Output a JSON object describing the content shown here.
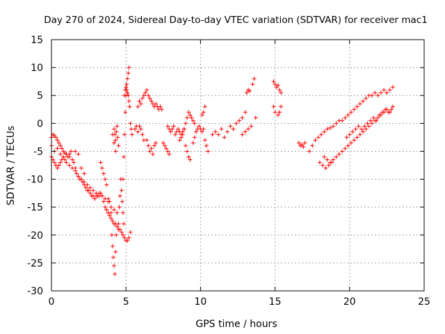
{
  "chart_data": {
    "type": "scatter",
    "title": "Day 270 of 2024, Sidereal Day-to-day VTEC variation (SDTVAR) for receiver mac1",
    "xlabel": "GPS time / hours",
    "ylabel": "SDTVAR / TECUs",
    "xlim": [
      0,
      25
    ],
    "ylim": [
      -30,
      15
    ],
    "xticks": [
      0,
      5,
      10,
      15,
      20,
      25
    ],
    "yticks": [
      -30,
      -25,
      -20,
      -15,
      -10,
      -5,
      0,
      5,
      10,
      15
    ],
    "grid": true,
    "marker": "+",
    "colors": {
      "series": "#ff0000",
      "axis": "#000000",
      "grid": "#a0a0a0"
    },
    "series": [
      {
        "name": "SDTVAR",
        "x": [
          0.0,
          0.1,
          0.2,
          0.3,
          0.4,
          0.5,
          0.6,
          0.7,
          0.8,
          0.9,
          1.0,
          1.1,
          1.2,
          1.3,
          1.4,
          1.5,
          1.6,
          1.7,
          1.8,
          1.9,
          2.0,
          2.1,
          2.2,
          2.3,
          2.4,
          2.5,
          2.6,
          2.7,
          2.8,
          2.9,
          3.0,
          3.1,
          3.2,
          3.3,
          3.4,
          3.5,
          3.6,
          3.7,
          3.8,
          3.9,
          4.0,
          4.1,
          4.2,
          4.3,
          4.4,
          4.5,
          4.6,
          4.7,
          4.8,
          4.9,
          5.0,
          5.1,
          5.2,
          5.3,
          0.0,
          0.1,
          0.2,
          0.3,
          0.4,
          0.5,
          0.6,
          0.7,
          0.8,
          0.9,
          1.0,
          1.2,
          1.4,
          1.6,
          1.8,
          2.0,
          2.2,
          2.4,
          2.6,
          2.8,
          3.0,
          3.2,
          3.4,
          3.6,
          3.8,
          4.0,
          4.2,
          4.4,
          0.0,
          0.2,
          0.4,
          0.6,
          0.8,
          1.0,
          1.2,
          1.4,
          1.6,
          1.8,
          2.0,
          2.2,
          3.3,
          3.4,
          3.5,
          3.6,
          3.7,
          3.8,
          3.9,
          4.0,
          4.05,
          4.1,
          4.15,
          4.2,
          4.25,
          4.3,
          4.35,
          4.5,
          4.55,
          4.6,
          4.65,
          4.7,
          4.75,
          4.8,
          4.85,
          4.2,
          4.25,
          4.3,
          4.35,
          4.4,
          4.45,
          4.5,
          4.1,
          4.2,
          4.3,
          4.8,
          4.85,
          4.9,
          4.95,
          5.0,
          5.05,
          5.1,
          5.15,
          5.2,
          4.9,
          4.95,
          5.0,
          5.05,
          5.1,
          5.15,
          5.2,
          5.25,
          5.3,
          5.35,
          5.4,
          5.6,
          5.7,
          5.8,
          5.9,
          6.0,
          6.1,
          6.2,
          5.8,
          5.9,
          6.0,
          6.1,
          6.2,
          6.3,
          6.4,
          6.5,
          6.6,
          6.7,
          6.8,
          6.9,
          7.0,
          7.1,
          7.2,
          7.3,
          7.4,
          6.4,
          6.5,
          6.6,
          6.7,
          6.8,
          6.9,
          7.0,
          7.5,
          7.6,
          7.7,
          7.8,
          7.9,
          7.8,
          7.9,
          8.0,
          8.1,
          8.2,
          8.3,
          8.4,
          8.5,
          8.6,
          8.7,
          8.8,
          8.9,
          8.6,
          8.7,
          8.8,
          8.9,
          9.0,
          9.1,
          9.2,
          9.3,
          9.4,
          9.5,
          9.6,
          9.0,
          9.1,
          9.2,
          9.3,
          9.5,
          9.6,
          9.7,
          9.8,
          9.9,
          10.0,
          10.1,
          10.2,
          10.1,
          10.2,
          10.3,
          10.3,
          10.4,
          10.5,
          10.8,
          11.0,
          11.2,
          11.4,
          11.6,
          11.8,
          12.0,
          12.2,
          12.4,
          12.6,
          12.8,
          13.0,
          13.1,
          13.2,
          13.3,
          12.8,
          13.0,
          13.2,
          13.4,
          13.5,
          13.6,
          13.7,
          14.9,
          15.0,
          15.1,
          15.2,
          15.3,
          15.4,
          15.2,
          15.3,
          15.4,
          14.9,
          15.0,
          16.6,
          16.7,
          16.8,
          16.9,
          17.0,
          17.3,
          17.5,
          17.7,
          17.9,
          18.1,
          18.3,
          18.5,
          18.7,
          18.9,
          19.1,
          19.3,
          19.5,
          19.7,
          19.9,
          20.1,
          20.3,
          20.5,
          20.7,
          20.9,
          21.1,
          21.3,
          21.5,
          21.7,
          21.9,
          22.1,
          22.3,
          22.5,
          22.7,
          22.9,
          18.3,
          18.5,
          18.7,
          18.9,
          19.1,
          19.3,
          19.5,
          19.7,
          19.9,
          20.1,
          20.3,
          20.5,
          20.7,
          20.9,
          21.1,
          21.3,
          21.5,
          21.7,
          21.9,
          22.1,
          22.3,
          22.5,
          22.7,
          22.9,
          18.0,
          18.2,
          18.4,
          18.6,
          18.8,
          19.8,
          20.0,
          20.2,
          20.4,
          20.6,
          20.8,
          21.0,
          21.2,
          21.4,
          21.6,
          21.8,
          22.0,
          22.2,
          22.4,
          22.6,
          22.8
        ],
        "y": [
          -2.5,
          -2.0,
          -2.2,
          -2.5,
          -3.0,
          -3.5,
          -4.0,
          -4.5,
          -5.0,
          -5.3,
          -5.5,
          -6.0,
          -5.5,
          -5.0,
          -6.5,
          -7.0,
          -8.0,
          -9.0,
          -9.5,
          -10.0,
          -10.0,
          -10.5,
          -11.0,
          -11.5,
          -12.0,
          -12.0,
          -12.5,
          -13.0,
          -13.0,
          -13.5,
          -13.0,
          -13.0,
          -12.5,
          -12.5,
          -13.0,
          -14.0,
          -15.0,
          -15.5,
          -16.0,
          -16.5,
          -17.0,
          -17.5,
          -18.0,
          -18.0,
          -18.5,
          -19.0,
          -19.0,
          -19.5,
          -20.0,
          -20.5,
          -21.0,
          -21.0,
          -20.5,
          -19.5,
          -6.0,
          -6.5,
          -7.0,
          -7.5,
          -8.0,
          -7.5,
          -7.0,
          -6.5,
          -6.0,
          -6.5,
          -7.0,
          -7.5,
          -8.0,
          -8.5,
          -9.5,
          -10.0,
          -10.5,
          -11.0,
          -11.5,
          -12.0,
          -12.5,
          -13.0,
          -13.0,
          -13.5,
          -14.0,
          -15.0,
          -15.5,
          -16.0,
          -4.0,
          -5.0,
          -4.5,
          -5.5,
          -6.0,
          -5.5,
          -6.0,
          -6.5,
          -5.0,
          -5.5,
          -8.0,
          -9.0,
          -7.0,
          -8.0,
          -9.0,
          -10.0,
          -11.0,
          -13.5,
          -14.0,
          -16.0,
          -20.0,
          -22.0,
          -24.0,
          -25.5,
          -27.0,
          -23.0,
          -20.0,
          -18.0,
          -15.0,
          -13.0,
          -10.0,
          -12.0,
          -14.0,
          -16.0,
          -18.0,
          -1.0,
          -2.0,
          -3.0,
          -1.5,
          -0.5,
          -2.5,
          -4.0,
          -2.0,
          -3.5,
          -5.0,
          -10.0,
          -6.0,
          -2.0,
          2.0,
          5.0,
          7.0,
          8.0,
          9.0,
          10.0,
          5.0,
          6.0,
          6.5,
          6.0,
          5.5,
          5.0,
          4.0,
          3.0,
          0.0,
          -1.0,
          -2.0,
          -1.0,
          -0.5,
          -1.5,
          -0.5,
          -1.0,
          -2.0,
          -3.0,
          3.0,
          4.0,
          3.5,
          4.5,
          5.0,
          5.5,
          6.0,
          5.0,
          4.5,
          4.0,
          3.5,
          3.0,
          3.5,
          3.0,
          2.5,
          3.0,
          2.5,
          -3.0,
          -4.0,
          -5.0,
          -4.5,
          -5.5,
          -4.0,
          -3.5,
          -3.5,
          -4.0,
          -4.5,
          -5.0,
          -5.5,
          -0.5,
          -1.0,
          -1.5,
          -1.0,
          -0.5,
          -2.0,
          -1.5,
          -1.0,
          -1.5,
          -2.0,
          -1.5,
          -1.0,
          -3.0,
          -2.5,
          -2.0,
          -1.0,
          0.0,
          1.0,
          2.0,
          1.5,
          1.0,
          0.5,
          0.0,
          -4.0,
          -5.0,
          -6.0,
          -6.5,
          -3.5,
          -2.5,
          -1.5,
          -1.0,
          -0.5,
          -1.0,
          -1.5,
          -1.0,
          1.5,
          2.0,
          3.0,
          -3.0,
          -4.0,
          -5.0,
          -2.0,
          -1.5,
          -2.0,
          -1.0,
          -2.5,
          -1.5,
          -0.5,
          -1.0,
          0.0,
          0.5,
          1.0,
          2.0,
          5.5,
          6.0,
          5.8,
          -2.0,
          -1.5,
          -1.0,
          -0.5,
          7.0,
          8.0,
          1.0,
          7.5,
          7.0,
          6.5,
          6.8,
          6.0,
          5.5,
          1.5,
          2.0,
          3.0,
          3.0,
          2.0,
          -3.5,
          -4.0,
          -3.8,
          -4.2,
          -3.5,
          -5.0,
          -4.0,
          -3.0,
          -2.5,
          -2.0,
          -1.5,
          -1.0,
          -0.8,
          -0.5,
          0.0,
          0.5,
          0.5,
          1.0,
          1.5,
          2.0,
          2.5,
          3.0,
          3.5,
          4.0,
          4.5,
          5.0,
          5.0,
          5.5,
          5.0,
          5.5,
          6.0,
          5.5,
          6.0,
          6.5,
          -6.0,
          -6.5,
          -7.0,
          -6.5,
          -6.0,
          -5.5,
          -5.0,
          -4.5,
          -4.0,
          -3.5,
          -3.0,
          -2.5,
          -2.0,
          -1.5,
          -1.0,
          -0.5,
          0.0,
          0.5,
          1.0,
          1.5,
          2.0,
          2.5,
          2.0,
          3.0,
          -7.0,
          -7.5,
          -8.0,
          -7.5,
          -7.0,
          -2.5,
          -2.0,
          -1.5,
          -1.0,
          -0.5,
          -1.0,
          -0.5,
          0.0,
          0.5,
          1.0,
          0.5,
          1.5,
          2.0,
          2.5,
          2.0,
          2.5
        ]
      }
    ]
  }
}
